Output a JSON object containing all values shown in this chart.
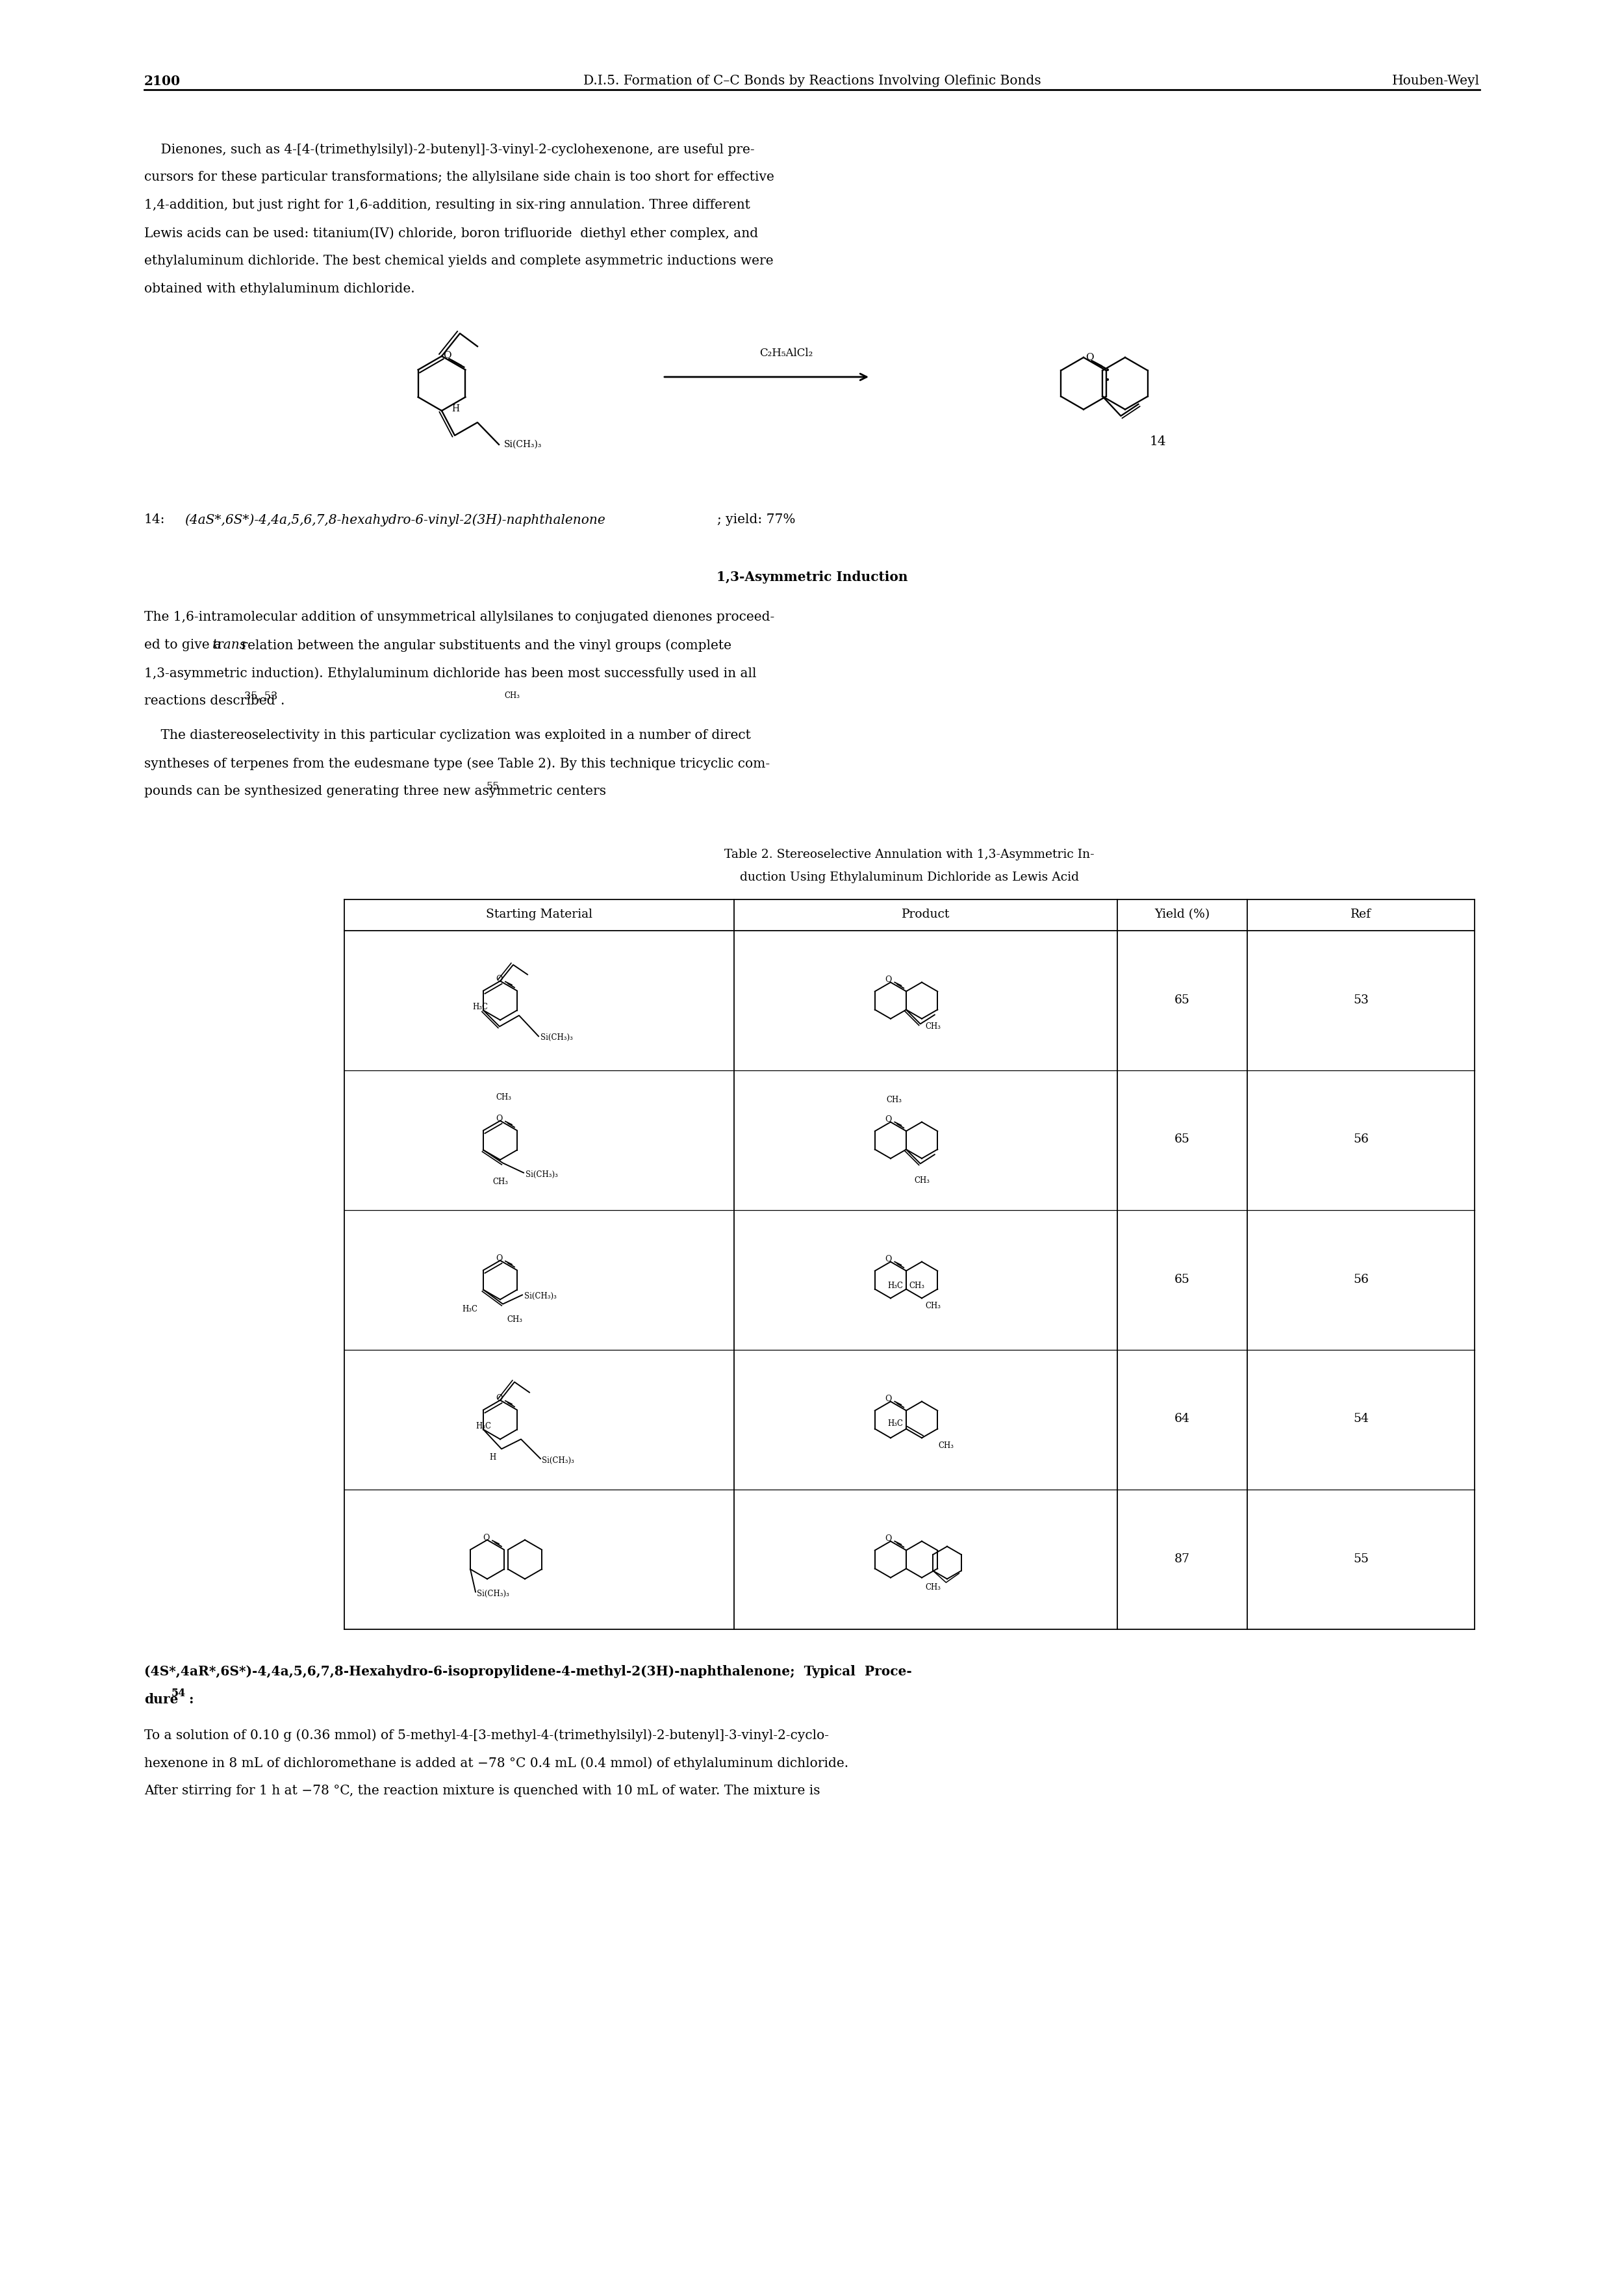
{
  "page_number": "2100",
  "header_center": "D.I.5. Formation of C–C Bonds by Reactions Involving Olefinic Bonds",
  "header_right": "Houben-Weyl",
  "para1_lines": [
    "    Dienones, such as 4-[4-(trimethylsilyl)-2-butenyl]-3-vinyl-2-cyclohexenone, are useful pre-",
    "cursors for these particular transformations; the allylsilane side chain is too short for effective",
    "1,4-addition, but just right for 1,6-addition, resulting in six-ring annulation. Three different",
    "Lewis acids can be used: titanium(IV) chloride, boron trifluoride  diethyl ether complex, and",
    "ethylaluminum dichloride. The best chemical yields and complete asymmetric inductions were",
    "obtained with ethylaluminum dichloride."
  ],
  "section_title": "1,3-Asymmetric Induction",
  "para2_lines": [
    "The 1,6-intramolecular addition of unsymmetrical allylsilanes to conjugated dienones proceed-",
    "ed to give a [trans] relation between the angular substituents and the vinyl groups (complete",
    "1,3-asymmetric induction). Ethylaluminum dichloride has been most successfully used in all",
    "reactions described[35, 53]."
  ],
  "para3_lines": [
    "    The diastereoselectivity in this particular cyclization was exploited in a number of direct",
    "syntheses of terpenes from the eudesmane type (see Table 2). By this technique tricyclic com-",
    "pounds can be synthesized generating three new asymmetric centers[55]."
  ],
  "table_title1": "Table 2. Stereoselective Annulation with 1,3-Asymmetric In-",
  "table_title2": "duction Using Ethylaluminum Dichloride as Lewis Acid",
  "table_headers": [
    "Starting Material",
    "Product",
    "Yield (%)",
    "Ref"
  ],
  "table_yields": [
    "65",
    "65",
    "65",
    "64",
    "87"
  ],
  "table_refs": [
    "53",
    "56",
    "56",
    "54",
    "55"
  ],
  "compound14": "14",
  "caption14_prefix": "14:",
  "caption14_italic": "(4aS*,6S*)-4,4a,5,6,7,8-hexahydro-6-vinyl-2(3H)-naphthalenone",
  "caption14_suffix": "; yield: 77%",
  "reagent": "C₂H₅AlCl₂",
  "bottom_bold1": "(4S*,4aR*,6S*)-4,4a,5,6,7,8-Hexahydro-6-isopropylidene-4-methyl-2(3H)-naphthalenone;  Typical  Proce-",
  "bottom_bold2": "dure",
  "bottom_ref": "54",
  "bottom_lines": [
    "To a solution of 0.10 g (0.36 mmol) of 5-methyl-4-[3-methyl-4-(trimethylsilyl)-2-butenyl]-3-vinyl-2-cyclo-",
    "hexenone in 8 mL of dichloromethane is added at −78 °C 0.4 mL (0.4 mmol) of ethylaluminum dichloride.",
    "After stirring for 1 h at −78 °C, the reaction mixture is quenched with 10 mL of water. The mixture is"
  ],
  "bg": "#ffffff"
}
